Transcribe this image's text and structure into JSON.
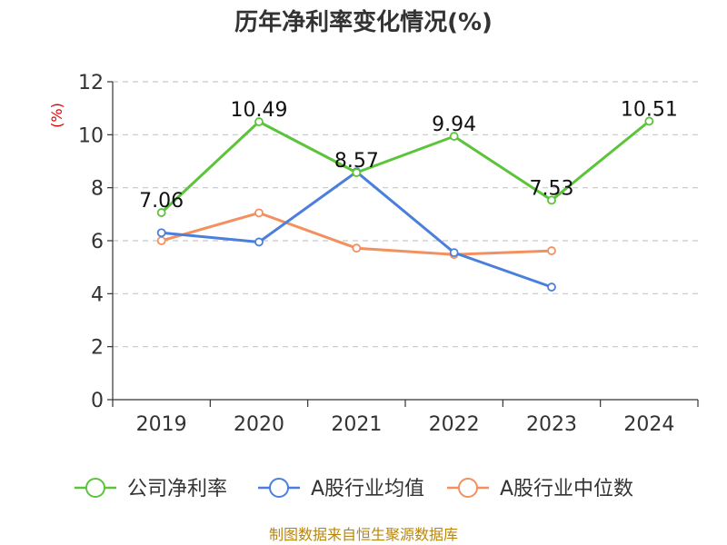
{
  "chart_data": {
    "type": "line",
    "title": "历年净利率变化情况(%)",
    "ylabel": "(%)",
    "xlabel": "",
    "categories": [
      "2019",
      "2020",
      "2021",
      "2022",
      "2023",
      "2024"
    ],
    "ylim": [
      0,
      12
    ],
    "yticks": [
      0,
      2,
      4,
      6,
      8,
      10,
      12
    ],
    "grid": true,
    "legend_position": "bottom",
    "series": [
      {
        "name": "公司净利率",
        "color": "#5cc43a",
        "values": [
          7.06,
          10.49,
          8.57,
          9.94,
          7.53,
          10.51
        ],
        "labels": [
          "7.06",
          "10.49",
          "8.57",
          "9.94",
          "7.53",
          "10.51"
        ]
      },
      {
        "name": "A股行业均值",
        "color": "#4a7fdc",
        "values": [
          6.3,
          5.95,
          8.6,
          5.55,
          4.25,
          null
        ]
      },
      {
        "name": "A股行业中位数",
        "color": "#f39060",
        "values": [
          6.0,
          7.05,
          5.72,
          5.48,
          5.62,
          null
        ]
      }
    ]
  },
  "footer": {
    "source": "制图数据来自恒生聚源数据库"
  }
}
